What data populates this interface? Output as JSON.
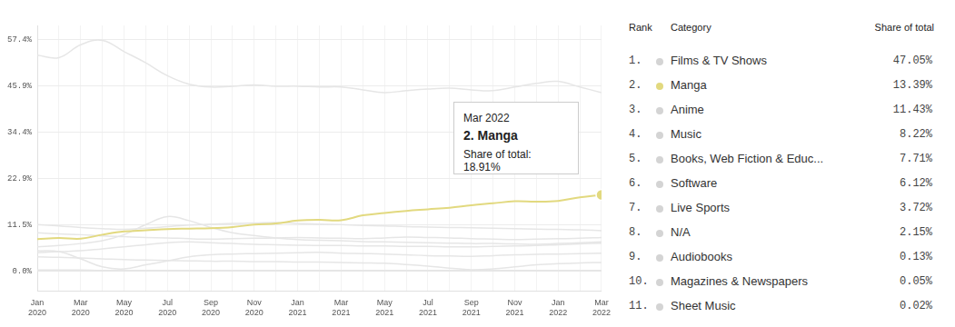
{
  "chart_data": {
    "type": "line",
    "categories": [
      "Jan 2020",
      null,
      "Mar 2020",
      null,
      "May 2020",
      null,
      "Jul 2020",
      null,
      "Sep 2020",
      null,
      "Nov 2020",
      null,
      "Jan 2021",
      null,
      "Mar 2021",
      null,
      "May 2021",
      null,
      "Jul 2021",
      null,
      "Sep 2021",
      null,
      "Nov 2021",
      null,
      "Jan 2022",
      null,
      "Mar 2022"
    ],
    "ylim": [
      -5,
      61
    ],
    "yticks": [
      {
        "value": 0,
        "label": "0.0%"
      },
      {
        "value": 11.5,
        "label": "11.5%"
      },
      {
        "value": 22.9,
        "label": "22.9%"
      },
      {
        "value": 34.4,
        "label": "34.4%"
      },
      {
        "value": 45.9,
        "label": "45.9%"
      },
      {
        "value": 57.4,
        "label": "57.4%"
      }
    ],
    "grid": true,
    "series": [
      {
        "name": "Films & TV Shows",
        "color": "#e6e6e6",
        "values": [
          53.6,
          53.0,
          56.2,
          57.3,
          54.5,
          51.7,
          48.5,
          46.4,
          45.7,
          45.9,
          46.2,
          45.9,
          45.9,
          45.7,
          45.7,
          45.0,
          44.3,
          44.8,
          45.2,
          45.4,
          45.0,
          44.8,
          45.7,
          46.6,
          47.1,
          45.7,
          44.3
        ]
      },
      {
        "name": "Manga",
        "color": "#e2d97f",
        "marker": "circle",
        "values": [
          7.9,
          8.2,
          8.0,
          9.0,
          9.8,
          10.1,
          10.4,
          10.5,
          10.6,
          10.9,
          11.5,
          11.8,
          12.5,
          12.7,
          12.6,
          13.8,
          14.4,
          14.9,
          15.3,
          15.7,
          16.3,
          16.8,
          17.3,
          17.2,
          17.4,
          18.3,
          18.91
        ]
      },
      {
        "name": "Anime",
        "color": "#e6e6e6",
        "values": [
          11.5,
          11.2,
          10.8,
          10.5,
          10.3,
          10.6,
          11.0,
          11.4,
          11.6,
          11.8,
          11.9,
          12.0,
          11.8,
          11.6,
          11.5,
          11.3,
          11.2,
          11.0,
          10.9,
          10.8,
          10.7,
          10.6,
          10.5,
          10.4,
          10.3,
          10.2,
          10.0
        ]
      },
      {
        "name": "Music",
        "color": "#e6e6e6",
        "values": [
          9.5,
          9.2,
          9.0,
          8.7,
          8.5,
          8.3,
          8.2,
          8.0,
          7.9,
          8.0,
          8.1,
          8.2,
          8.3,
          8.2,
          8.1,
          8.0,
          8.2,
          8.4,
          8.3,
          8.2,
          8.0,
          7.9,
          7.8,
          7.9,
          8.0,
          8.1,
          8.3
        ]
      },
      {
        "name": "Books, Web Fiction & Educ...",
        "color": "#e6e6e6",
        "values": [
          6.0,
          6.3,
          6.8,
          7.5,
          9.0,
          11.5,
          13.5,
          12.5,
          10.8,
          9.5,
          8.8,
          8.2,
          7.8,
          7.6,
          7.5,
          7.3,
          7.2,
          7.1,
          7.0,
          6.9,
          6.8,
          6.8,
          6.7,
          6.6,
          6.8,
          7.0,
          7.2
        ]
      },
      {
        "name": "Software",
        "color": "#e6e6e6",
        "values": [
          4.5,
          4.8,
          5.0,
          5.5,
          6.0,
          6.5,
          7.0,
          7.2,
          7.0,
          6.8,
          6.6,
          6.5,
          6.4,
          6.3,
          6.3,
          6.2,
          6.2,
          6.1,
          6.1,
          6.0,
          6.0,
          6.1,
          6.2,
          6.3,
          6.5,
          6.7,
          6.9
        ]
      },
      {
        "name": "Live Sports",
        "color": "#e6e6e6",
        "values": [
          5.0,
          4.8,
          3.0,
          1.0,
          0.5,
          1.5,
          2.5,
          3.5,
          4.0,
          4.2,
          4.3,
          4.4,
          4.5,
          4.6,
          4.4,
          4.3,
          4.2,
          4.0,
          3.8,
          3.7,
          3.6,
          3.8,
          4.0,
          4.1,
          4.2,
          4.3,
          4.4
        ]
      },
      {
        "name": "N/A",
        "color": "#e6e6e6",
        "values": [
          3.5,
          3.4,
          3.2,
          3.0,
          2.8,
          2.7,
          2.6,
          2.5,
          2.4,
          2.4,
          2.3,
          2.3,
          2.2,
          2.2,
          2.1,
          2.0,
          1.9,
          1.6,
          1.2,
          0.7,
          0.3,
          0.5,
          1.0,
          1.5,
          1.8,
          2.0,
          2.1
        ]
      },
      {
        "name": "Audiobooks",
        "color": "#e6e6e6",
        "values": [
          0.2,
          0.2,
          0.2,
          0.1,
          0.1,
          0.1,
          0.1,
          0.1,
          0.1,
          0.1,
          0.1,
          0.1,
          0.1,
          0.1,
          0.1,
          0.1,
          0.1,
          0.1,
          0.1,
          0.1,
          0.1,
          0.1,
          0.1,
          0.1,
          0.1,
          0.1,
          0.1
        ]
      },
      {
        "name": "Magazines & Newspapers",
        "color": "#e6e6e6",
        "values": [
          0.05,
          0.05,
          0.05,
          0.05,
          0.05,
          0.05,
          0.05,
          0.05,
          0.05,
          0.05,
          0.05,
          0.05,
          0.05,
          0.05,
          0.05,
          0.05,
          0.05,
          0.05,
          0.05,
          0.05,
          0.05,
          0.05,
          0.05,
          0.05,
          0.05,
          0.05,
          0.05
        ]
      },
      {
        "name": "Sheet Music",
        "color": "#e6e6e6",
        "values": [
          0.02,
          0.02,
          0.02,
          0.02,
          0.02,
          0.02,
          0.02,
          0.02,
          0.02,
          0.02,
          0.02,
          0.02,
          0.02,
          0.02,
          0.02,
          0.02,
          0.02,
          0.02,
          0.02,
          0.02,
          0.02,
          0.02,
          0.02,
          0.02,
          0.02,
          0.02,
          0.02
        ]
      }
    ],
    "annotation": {
      "x": "Mar 2022",
      "title": "2. Manga",
      "text": "Share of total: 18.91%"
    }
  },
  "table": {
    "header": [
      "Rank",
      "Category",
      "Share of total"
    ],
    "rank": [
      "1.",
      "2.",
      "3.",
      "4.",
      "5.",
      "6.",
      "7.",
      "8.",
      "9.",
      "10.",
      "11."
    ],
    "share": [
      "47.05%",
      "13.39%",
      "11.43%",
      "8.22%",
      "7.71%",
      "6.12%",
      "3.72%",
      "2.15%",
      "0.13%",
      "0.05%",
      "0.02%"
    ],
    "dot_colors": [
      "#d4d4d4",
      "#e2d97f",
      "#d4d4d4",
      "#d4d4d4",
      "#d4d4d4",
      "#d4d4d4",
      "#d4d4d4",
      "#d4d4d4",
      "#d4d4d4",
      "#d4d4d4",
      "#d4d4d4"
    ]
  }
}
